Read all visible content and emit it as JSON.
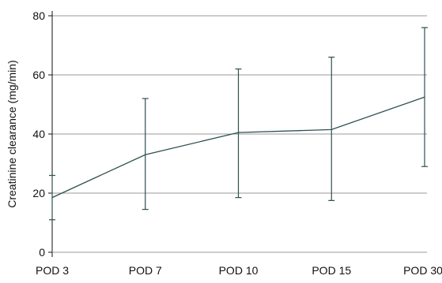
{
  "chart_data": {
    "type": "line",
    "title": "",
    "xlabel": "",
    "ylabel": "Creatinine clearance (mg/min)",
    "categories": [
      "POD 3",
      "POD 7",
      "POD 10",
      "POD 15",
      "POD 30"
    ],
    "series": [
      {
        "values": [
          18.5,
          33,
          40.5,
          41.5,
          52.5
        ],
        "error_lower": [
          11,
          14.5,
          18.5,
          17.5,
          29
        ],
        "error_upper": [
          26,
          52,
          62,
          66,
          76
        ]
      }
    ],
    "ylim": [
      0,
      80
    ],
    "yticks": [
      0,
      20,
      40,
      60,
      80
    ],
    "ytick_labels": [
      "0",
      "20",
      "40",
      "60",
      "80"
    ],
    "grid": true,
    "legend": "none",
    "colors": {
      "line": "#2f4f4f",
      "grid": "#999999",
      "axis": "#111111"
    }
  }
}
